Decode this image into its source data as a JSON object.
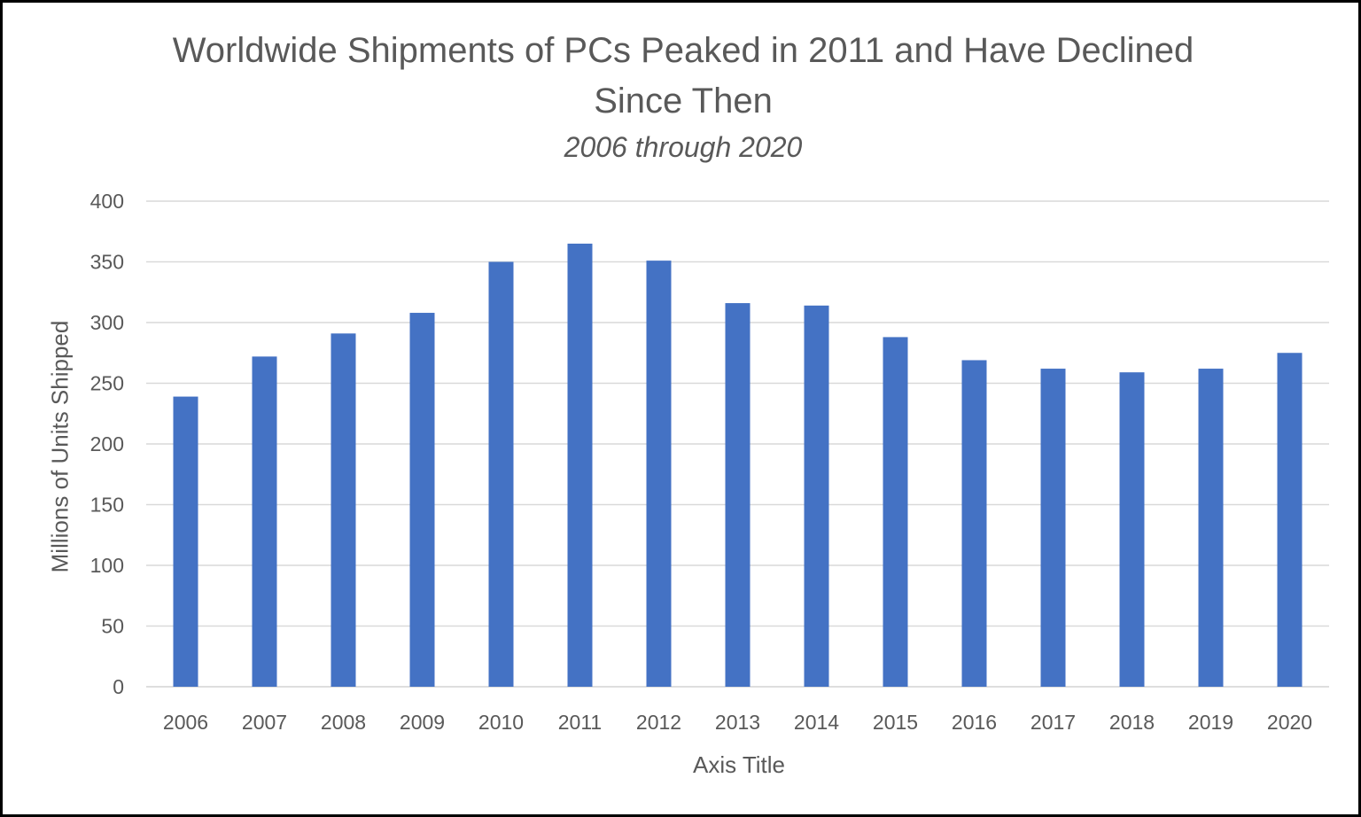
{
  "chart_data": {
    "type": "bar",
    "title_lines": [
      "Worldwide Shipments of PCs Peaked in 2011 and Have Declined",
      "Since Then"
    ],
    "subtitle": "2006 through 2020",
    "xlabel": "Axis Title",
    "ylabel": "Millions of Units Shipped",
    "ylim": [
      0,
      400
    ],
    "yticks": [
      0,
      50,
      100,
      150,
      200,
      250,
      300,
      350,
      400
    ],
    "grid": true,
    "legend": "none",
    "bar_color": "#4472C4",
    "categories": [
      "2006",
      "2007",
      "2008",
      "2009",
      "2010",
      "2011",
      "2012",
      "2013",
      "2014",
      "2015",
      "2016",
      "2017",
      "2018",
      "2019",
      "2020"
    ],
    "values": [
      239,
      272,
      291,
      308,
      350,
      365,
      351,
      316,
      314,
      288,
      269,
      262,
      259,
      262,
      275
    ]
  }
}
